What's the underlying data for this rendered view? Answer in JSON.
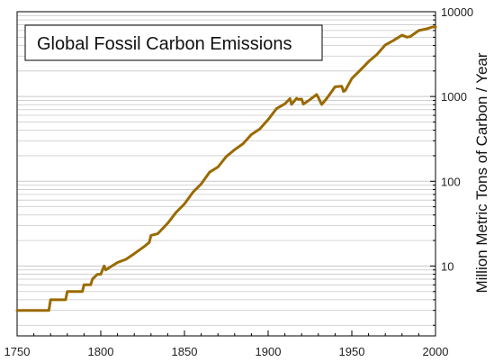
{
  "chart_data": {
    "type": "line",
    "title": "Global Fossil Carbon Emissions",
    "xlabel": "",
    "ylabel": "Million Metric Tons of Carbon / Year",
    "xlim": [
      1750,
      2000
    ],
    "ylim": [
      1.5,
      10000
    ],
    "yscale": "log",
    "grid": "horizontal minor and major lines",
    "legend": "none",
    "x_ticks": [
      "1750",
      "1800",
      "1850",
      "1900",
      "1950",
      "2000"
    ],
    "y_ticks": [
      "10",
      "100",
      "1000",
      "10000"
    ],
    "line_color": "#9a6a00",
    "series": [
      {
        "x": [
          1750,
          1760,
          1769,
          1770,
          1779,
          1780,
          1789,
          1790,
          1794,
          1795,
          1798,
          1800,
          1802,
          1803,
          1810,
          1815,
          1820,
          1826,
          1829,
          1830,
          1834,
          1840,
          1845,
          1850,
          1855,
          1860,
          1865,
          1870,
          1875,
          1880,
          1885,
          1890,
          1895,
          1900,
          1905,
          1910,
          1913,
          1914,
          1917,
          1918,
          1920,
          1921,
          1925,
          1929,
          1930,
          1932,
          1935,
          1940,
          1944,
          1945,
          1946,
          1950,
          1955,
          1960,
          1965,
          1970,
          1975,
          1978,
          1980,
          1983,
          1985,
          1990,
          1995,
          1998,
          2000
        ],
        "y": [
          3,
          3,
          3,
          4,
          4,
          5,
          5,
          6,
          6,
          7,
          8,
          8,
          10,
          9,
          11,
          12,
          14,
          17,
          19,
          23,
          24,
          32,
          43,
          54,
          74,
          93,
          128,
          147,
          196,
          236,
          277,
          356,
          414,
          534,
          719,
          819,
          943,
          808,
          950,
          923,
          932,
          814,
          918,
          1055,
          970,
          805,
          946,
          1299,
          1322,
          1148,
          1175,
          1630,
          2042,
          2577,
          3133,
          4053,
          4596,
          5000,
          5299,
          4999,
          5100,
          6000,
          6300,
          6600,
          6600
        ]
      }
    ]
  }
}
